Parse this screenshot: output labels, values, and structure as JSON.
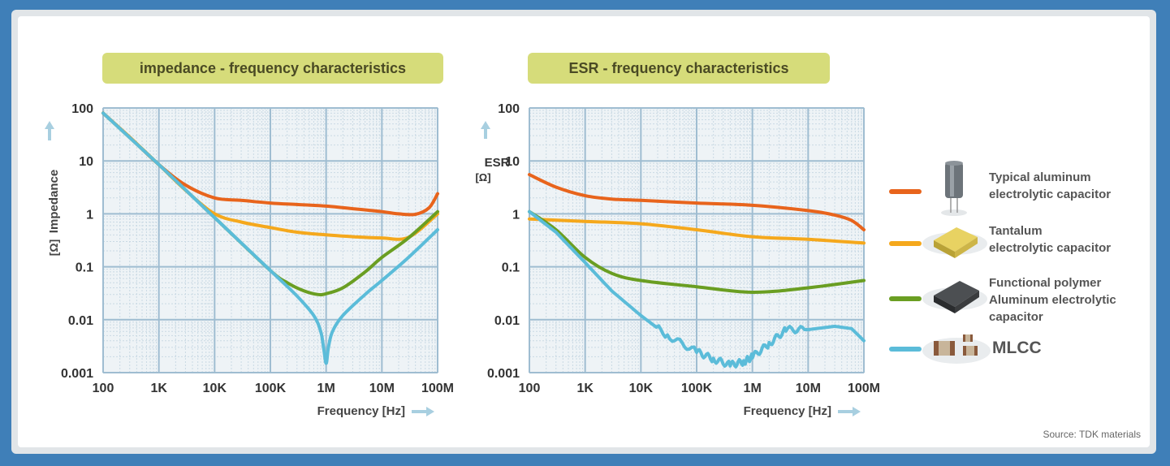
{
  "chart_data": [
    {
      "type": "line",
      "title": "impedance - frequency characteristics",
      "ylabel": "Impedance",
      "yunit": "[Ω]",
      "xlabel": "Frequency",
      "xunit": "[Hz]",
      "xscale": "log",
      "yscale": "log",
      "xlim": [
        100,
        100000000
      ],
      "ylim": [
        0.001,
        100
      ],
      "grid": true,
      "x_ticks": [
        "100",
        "1K",
        "10K",
        "100K",
        "1M",
        "10M",
        "100M"
      ],
      "y_ticks": [
        "100",
        "10",
        "1",
        "0.1",
        "0.01",
        "0.001"
      ],
      "series": [
        {
          "name": "Typical aluminum electrolytic capacitor",
          "color": "#e8641c",
          "x": [
            100,
            300,
            1000,
            3000,
            10000,
            30000,
            100000,
            300000,
            1000000,
            3000000,
            10000000,
            20000000,
            40000000,
            70000000,
            100000000
          ],
          "y": [
            80,
            28,
            8.5,
            3.5,
            2.0,
            1.8,
            1.6,
            1.5,
            1.4,
            1.25,
            1.1,
            1.0,
            0.98,
            1.3,
            2.4
          ]
        },
        {
          "name": "Tantalum electrolytic capacitor",
          "color": "#f5a81c",
          "x": [
            100,
            300,
            1000,
            3000,
            10000,
            30000,
            100000,
            300000,
            1000000,
            3000000,
            10000000,
            30000000,
            100000000
          ],
          "y": [
            80,
            28,
            8.5,
            2.8,
            1.0,
            0.7,
            0.55,
            0.45,
            0.4,
            0.37,
            0.35,
            0.36,
            1.0
          ]
        },
        {
          "name": "Functional polymer Aluminum electrolytic capacitor",
          "color": "#6a9e22",
          "x": [
            100,
            1000,
            10000,
            100000,
            200000,
            400000,
            700000,
            1000000,
            2000000,
            5000000,
            10000000,
            30000000,
            100000000
          ],
          "y": [
            80,
            8.5,
            0.85,
            0.085,
            0.05,
            0.035,
            0.03,
            0.031,
            0.04,
            0.08,
            0.15,
            0.35,
            1.1
          ]
        },
        {
          "name": "MLCC",
          "color": "#5bbcd9",
          "x": [
            100,
            1000,
            10000,
            100000,
            300000,
            600000,
            800000,
            900000,
            1000000,
            1100000,
            1300000,
            2000000,
            5000000,
            10000000,
            30000000,
            100000000
          ],
          "y": [
            80,
            8.5,
            0.85,
            0.085,
            0.028,
            0.012,
            0.006,
            0.003,
            0.0015,
            0.003,
            0.006,
            0.012,
            0.03,
            0.055,
            0.15,
            0.5
          ]
        }
      ]
    },
    {
      "type": "line",
      "title": "ESR - frequency characteristics",
      "ylabel": "ESR",
      "yunit": "[Ω]",
      "xlabel": "Frequency",
      "xunit": "[Hz]",
      "xscale": "log",
      "yscale": "log",
      "xlim": [
        100,
        100000000
      ],
      "ylim": [
        0.001,
        100
      ],
      "grid": true,
      "x_ticks": [
        "100",
        "1K",
        "10K",
        "100K",
        "1M",
        "10M",
        "100M"
      ],
      "y_ticks": [
        "100",
        "10",
        "1",
        "0.1",
        "0.01",
        "0.001"
      ],
      "series": [
        {
          "name": "Typical aluminum electrolytic capacitor",
          "color": "#e8641c",
          "x": [
            100,
            300,
            1000,
            3000,
            10000,
            100000,
            1000000,
            10000000,
            30000000,
            60000000,
            100000000
          ],
          "y": [
            5.5,
            3.2,
            2.2,
            1.9,
            1.8,
            1.6,
            1.45,
            1.15,
            0.95,
            0.75,
            0.5
          ]
        },
        {
          "name": "Tantalum electrolytic capacitor",
          "color": "#f5a81c",
          "x": [
            100,
            1000,
            10000,
            100000,
            1000000,
            10000000,
            100000000
          ],
          "y": [
            0.8,
            0.72,
            0.65,
            0.5,
            0.37,
            0.33,
            0.28
          ]
        },
        {
          "name": "Functional polymer Aluminum electrolytic capacitor",
          "color": "#6a9e22",
          "x": [
            100,
            300,
            1000,
            3000,
            10000,
            100000,
            1000000,
            10000000,
            100000000
          ],
          "y": [
            1.1,
            0.5,
            0.15,
            0.075,
            0.055,
            0.042,
            0.033,
            0.04,
            0.055
          ]
        },
        {
          "name": "MLCC",
          "color": "#5bbcd9",
          "x": [
            100,
            300,
            1000,
            3000,
            10000,
            30000,
            100000,
            200000,
            400000,
            700000,
            1000000,
            2000000,
            4000000,
            10000000,
            30000000,
            60000000,
            100000000
          ],
          "y": [
            1.1,
            0.45,
            0.12,
            0.035,
            0.012,
            0.005,
            0.0025,
            0.0018,
            0.0014,
            0.0016,
            0.002,
            0.0035,
            0.0065,
            0.0065,
            0.0075,
            0.0068,
            0.004
          ]
        }
      ]
    }
  ],
  "legend": [
    {
      "lines": [
        "Typical aluminum",
        "electrolytic capacitor"
      ],
      "color": "#e8641c"
    },
    {
      "lines": [
        "Tantalum",
        "electrolytic capacitor"
      ],
      "color": "#f5a81c"
    },
    {
      "lines": [
        "Functional polymer",
        "Aluminum electrolytic",
        "capacitor"
      ],
      "color": "#6a9e22"
    },
    {
      "lines": [
        "MLCC"
      ],
      "color": "#5bbcd9"
    }
  ],
  "source": "Source: TDK materials"
}
